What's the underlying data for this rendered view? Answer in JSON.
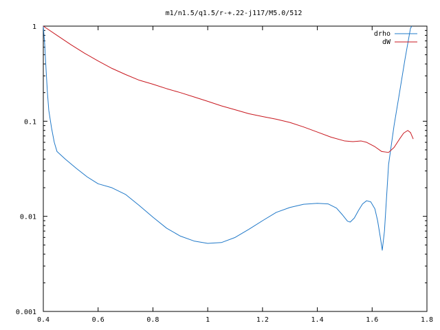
{
  "chart_data": {
    "type": "line",
    "title": "m1/n1.5/q1.5/r-+.22-j117/M5.0/512",
    "xlabel": "",
    "ylabel": "",
    "xlim": [
      0.4,
      1.8
    ],
    "ylim": [
      0.001,
      1
    ],
    "yscale": "log",
    "grid": false,
    "legend": "top-right",
    "x_ticks": [
      {
        "value": 0.4,
        "label": "0.4"
      },
      {
        "value": 0.6,
        "label": "0.6"
      },
      {
        "value": 0.8,
        "label": "0.8"
      },
      {
        "value": 1.0,
        "label": "1"
      },
      {
        "value": 1.2,
        "label": "1.2"
      },
      {
        "value": 1.4,
        "label": "1.4"
      },
      {
        "value": 1.6,
        "label": "1.6"
      },
      {
        "value": 1.8,
        "label": "1.8"
      }
    ],
    "y_ticks": [
      {
        "value": 1,
        "label": "1"
      },
      {
        "value": 0.1,
        "label": "0.1"
      },
      {
        "value": 0.01,
        "label": "0.01"
      },
      {
        "value": 0.001,
        "label": "0.001"
      }
    ],
    "series": [
      {
        "name": "drho",
        "color": "#1f78c8",
        "points": [
          [
            0.4,
            1.0
          ],
          [
            0.405,
            0.65
          ],
          [
            0.41,
            0.35
          ],
          [
            0.415,
            0.2
          ],
          [
            0.42,
            0.13
          ],
          [
            0.43,
            0.085
          ],
          [
            0.44,
            0.06
          ],
          [
            0.45,
            0.048
          ],
          [
            0.48,
            0.04
          ],
          [
            0.52,
            0.032
          ],
          [
            0.56,
            0.026
          ],
          [
            0.6,
            0.022
          ],
          [
            0.65,
            0.02
          ],
          [
            0.7,
            0.017
          ],
          [
            0.75,
            0.013
          ],
          [
            0.8,
            0.0098
          ],
          [
            0.85,
            0.0075
          ],
          [
            0.9,
            0.0062
          ],
          [
            0.95,
            0.0055
          ],
          [
            1.0,
            0.0052
          ],
          [
            1.05,
            0.0053
          ],
          [
            1.1,
            0.006
          ],
          [
            1.15,
            0.0073
          ],
          [
            1.2,
            0.009
          ],
          [
            1.25,
            0.011
          ],
          [
            1.3,
            0.0124
          ],
          [
            1.35,
            0.0134
          ],
          [
            1.4,
            0.0137
          ],
          [
            1.44,
            0.0135
          ],
          [
            1.47,
            0.0122
          ],
          [
            1.49,
            0.0105
          ],
          [
            1.51,
            0.0089
          ],
          [
            1.52,
            0.0087
          ],
          [
            1.535,
            0.0096
          ],
          [
            1.55,
            0.0115
          ],
          [
            1.565,
            0.0135
          ],
          [
            1.58,
            0.0146
          ],
          [
            1.595,
            0.0142
          ],
          [
            1.61,
            0.012
          ],
          [
            1.62,
            0.009
          ],
          [
            1.63,
            0.006
          ],
          [
            1.637,
            0.0044
          ],
          [
            1.645,
            0.007
          ],
          [
            1.66,
            0.035
          ],
          [
            1.68,
            0.09
          ],
          [
            1.7,
            0.2
          ],
          [
            1.72,
            0.45
          ],
          [
            1.74,
            0.95
          ],
          [
            1.745,
            1.0
          ]
        ]
      },
      {
        "name": "dW",
        "color": "#c8161d",
        "points": [
          [
            0.4,
            1.0
          ],
          [
            0.45,
            0.8
          ],
          [
            0.5,
            0.64
          ],
          [
            0.55,
            0.52
          ],
          [
            0.6,
            0.43
          ],
          [
            0.65,
            0.36
          ],
          [
            0.7,
            0.31
          ],
          [
            0.75,
            0.27
          ],
          [
            0.8,
            0.245
          ],
          [
            0.85,
            0.22
          ],
          [
            0.9,
            0.2
          ],
          [
            0.95,
            0.18
          ],
          [
            1.0,
            0.162
          ],
          [
            1.05,
            0.145
          ],
          [
            1.1,
            0.132
          ],
          [
            1.15,
            0.12
          ],
          [
            1.2,
            0.112
          ],
          [
            1.25,
            0.105
          ],
          [
            1.3,
            0.097
          ],
          [
            1.35,
            0.087
          ],
          [
            1.4,
            0.077
          ],
          [
            1.45,
            0.068
          ],
          [
            1.5,
            0.062
          ],
          [
            1.53,
            0.061
          ],
          [
            1.56,
            0.062
          ],
          [
            1.58,
            0.06
          ],
          [
            1.61,
            0.054
          ],
          [
            1.635,
            0.048
          ],
          [
            1.66,
            0.047
          ],
          [
            1.68,
            0.053
          ],
          [
            1.7,
            0.065
          ],
          [
            1.715,
            0.075
          ],
          [
            1.73,
            0.08
          ],
          [
            1.74,
            0.076
          ],
          [
            1.75,
            0.065
          ]
        ]
      }
    ]
  }
}
